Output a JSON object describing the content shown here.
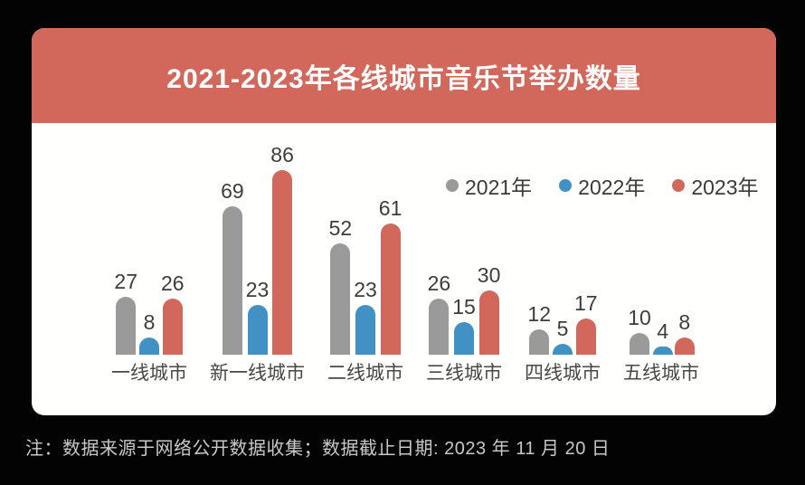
{
  "header": {
    "title": "2021-2023年各线城市音乐节举办数量"
  },
  "footnote": {
    "text": "注：数据来源于网络公开数据收集；数据截止日期: 2023 年 11 月 20 日"
  },
  "colors": {
    "page_bg": "#030303",
    "card_bg": "#FFFFFE",
    "header_bg": "#D2685C",
    "title_text": "#FFFFFF",
    "value_text": "#3D3D3D",
    "category_text": "#484848",
    "legend_text": "#3A3A3A",
    "footnote_text": "#C8C8C8",
    "series_2021": "#9A9A9A",
    "series_2022": "#4191C4",
    "series_2023": "#D2685C"
  },
  "chart_data": {
    "type": "bar",
    "title": "2021-2023年各线城市音乐节举办数量",
    "categories": [
      "一线城市",
      "新一线城市",
      "二线城市",
      "三线城市",
      "四线城市",
      "五线城市"
    ],
    "series": [
      {
        "name": "2021年",
        "color": "#9A9A9A",
        "values": [
          27,
          69,
          52,
          26,
          12,
          10
        ]
      },
      {
        "name": "2022年",
        "color": "#4191C4",
        "values": [
          8,
          23,
          23,
          15,
          5,
          4
        ]
      },
      {
        "name": "2023年",
        "color": "#D2685C",
        "values": [
          26,
          86,
          61,
          30,
          17,
          8
        ]
      }
    ],
    "value_labels": true,
    "legend_position": "top-right",
    "axes": "none",
    "grid": false,
    "ylim": [
      0,
      90
    ],
    "footnote": "注：数据来源于网络公开数据收集；数据截止日期: 2023 年 11 月 20 日"
  }
}
